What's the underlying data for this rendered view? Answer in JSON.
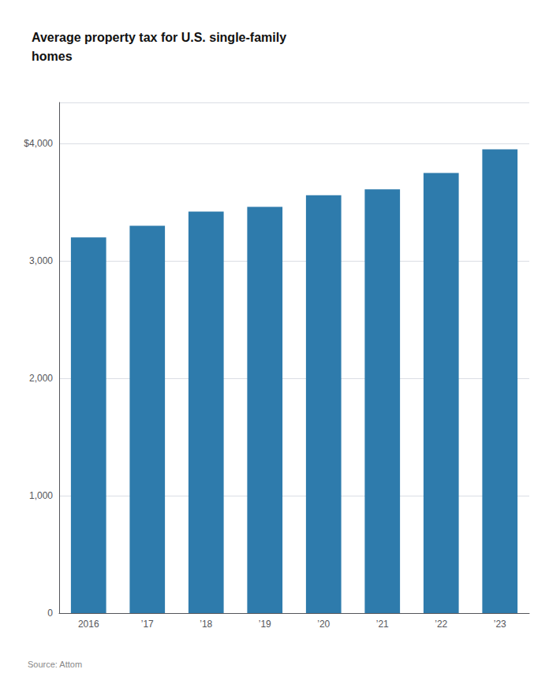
{
  "chart_data": {
    "type": "bar",
    "title": "Average property tax for U.S. single-family\nhomes",
    "categories": [
      "2016",
      "’17",
      "’18",
      "’19",
      "’20",
      "’21",
      "’22",
      "’23"
    ],
    "values": [
      3200,
      3300,
      3420,
      3460,
      3560,
      3610,
      3750,
      3950
    ],
    "color": "#2e7bac",
    "ylim": [
      0,
      4350
    ],
    "yticks": [
      0,
      {
        "value": 1000,
        "label": "1,000"
      },
      {
        "value": 2000,
        "label": "2,000"
      },
      {
        "value": 3000,
        "label": "3,000"
      },
      {
        "value": 4000,
        "label": "$4,000"
      }
    ],
    "grid": true,
    "annotations": [
      "Source: Attom"
    ]
  }
}
